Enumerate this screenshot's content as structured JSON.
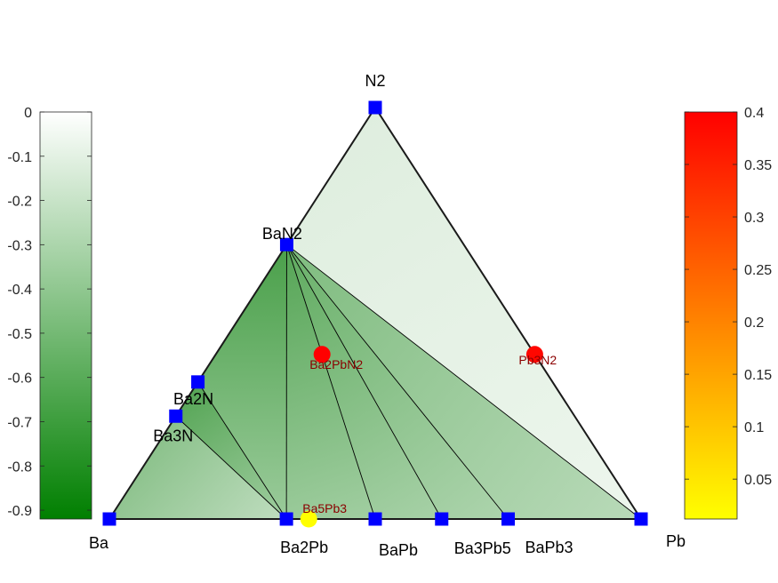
{
  "chart_data": {
    "type": "ternary-phase-diagram",
    "corners": {
      "top": "N2",
      "left": "Ba",
      "right": "Pb"
    },
    "stable_phases": [
      {
        "name": "N2",
        "frac_Ba": 0.0,
        "frac_N": 1.0,
        "label": "N2"
      },
      {
        "name": "Ba",
        "frac_Ba": 1.0,
        "frac_N": 0.0,
        "label": "Ba"
      },
      {
        "name": "Pb",
        "frac_Ba": 0.0,
        "frac_N": 0.0,
        "label": "Pb"
      },
      {
        "name": "BaN2",
        "frac_Ba": 0.333,
        "frac_N": 0.667,
        "label": "BaN2"
      },
      {
        "name": "Ba2N",
        "frac_Ba": 0.667,
        "frac_N": 0.333,
        "label": "Ba2N"
      },
      {
        "name": "Ba3N",
        "frac_Ba": 0.75,
        "frac_N": 0.25,
        "label": "Ba3N"
      },
      {
        "name": "Ba2Pb",
        "frac_Ba": 0.667,
        "frac_N": 0.0,
        "label": "Ba2Pb"
      },
      {
        "name": "BaPb",
        "frac_Ba": 0.5,
        "frac_N": 0.0,
        "label": "BaPb"
      },
      {
        "name": "Ba3Pb5",
        "frac_Ba": 0.375,
        "frac_N": 0.0,
        "label": "Ba3Pb5"
      },
      {
        "name": "BaPb3",
        "frac_Ba": 0.25,
        "frac_N": 0.0,
        "label": "BaPb3"
      }
    ],
    "unstable_phases": [
      {
        "name": "Ba2PbN2",
        "frac_Ba": 0.4,
        "frac_N": 0.4,
        "e_above_hull": 0.4,
        "label": "Ba2PbN2"
      },
      {
        "name": "Pb3N2",
        "frac_Ba": 0.0,
        "frac_N": 0.4,
        "e_above_hull": 0.39,
        "label": "Pb3N2"
      },
      {
        "name": "Ba5Pb3",
        "frac_Ba": 0.625,
        "frac_N": 0.0,
        "e_above_hull": 0.012,
        "label": "Ba5Pb3"
      }
    ],
    "tie_lines": [
      [
        "BaN2",
        "Ba2Pb"
      ],
      [
        "BaN2",
        "BaPb"
      ],
      [
        "BaN2",
        "Ba3Pb5"
      ],
      [
        "BaN2",
        "BaPb3"
      ],
      [
        "BaN2",
        "Pb"
      ],
      [
        "BaN2",
        "Ba2N"
      ],
      [
        "Ba2N",
        "Ba2Pb"
      ],
      [
        "Ba3N",
        "Ba2Pb"
      ]
    ],
    "formation_energy_colorbar": {
      "ticks": [
        "0",
        "-0.1",
        "-0.2",
        "-0.3",
        "-0.4",
        "-0.5",
        "-0.6",
        "-0.7",
        "-0.8",
        "-0.9"
      ],
      "range": [
        -0.92,
        0
      ],
      "colors": [
        "#007f00",
        "#ffffff"
      ]
    },
    "hull_energy_colorbar": {
      "ticks": [
        "0.05",
        "0.1",
        "0.15",
        "0.2",
        "0.25",
        "0.3",
        "0.35",
        "0.4"
      ],
      "range": [
        0.012,
        0.4
      ],
      "colors": [
        "#ffff00",
        "#ff0000"
      ]
    }
  }
}
